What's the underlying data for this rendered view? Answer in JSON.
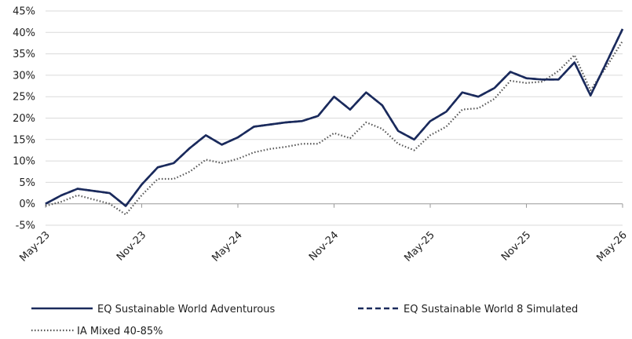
{
  "chart_data": {
    "type": "line",
    "x": [
      "May-23",
      "Jun-23",
      "Jul-23",
      "Aug-23",
      "Sep-23",
      "Oct-23",
      "Nov-23",
      "Dec-23",
      "Jan-24",
      "Feb-24",
      "Mar-24",
      "Apr-24",
      "May-24",
      "Jun-24",
      "Jul-24",
      "Aug-24",
      "Sep-24",
      "Oct-24",
      "Nov-24",
      "Dec-24",
      "Jan-25",
      "Feb-25",
      "Mar-25",
      "Apr-25",
      "May-25",
      "Jun-25",
      "Jul-25",
      "Aug-25",
      "Sep-25",
      "Oct-25",
      "Nov-25",
      "Dec-25",
      "Jan-26",
      "Feb-26",
      "Mar-26",
      "Apr-26",
      "May-26"
    ],
    "xticks": [
      "May-23",
      "Nov-23",
      "May-24",
      "Nov-24",
      "May-25",
      "Nov-25",
      "May-26"
    ],
    "ylim": [
      -5,
      45
    ],
    "yticks": [
      "-5%",
      "0%",
      "5%",
      "10%",
      "15%",
      "20%",
      "25%",
      "30%",
      "35%",
      "40%",
      "45%"
    ],
    "grid": "horizontal",
    "legend_position": "bottom",
    "series": [
      {
        "name": "EQ Sustainable World Adventurous",
        "style": "solid",
        "color": "#1a2a5c",
        "values": [
          0.0,
          2.0,
          3.5,
          3.0,
          2.5,
          -0.5,
          4.5,
          8.5,
          9.5,
          13.0,
          16.0,
          13.8,
          15.5,
          18.0,
          18.5,
          19.0,
          19.3,
          20.5,
          25.0,
          22.0,
          26.0,
          23.0,
          17.0,
          15.0,
          19.3,
          21.5,
          26.0,
          25.0,
          27.0,
          30.8,
          29.3,
          29.0,
          29.0,
          33.0,
          25.3,
          33.0,
          40.8
        ]
      },
      {
        "name": "EQ Sustainable World 8 Simulated",
        "style": "dashed",
        "color": "#1a2a5c",
        "values": [
          0.0,
          2.0,
          3.5,
          3.0,
          2.5,
          -0.5,
          4.5,
          8.5,
          9.5,
          13.0,
          16.0,
          13.8,
          15.5,
          18.0,
          18.5,
          19.0,
          19.3,
          20.5,
          25.0,
          22.0,
          26.0,
          23.0,
          17.0,
          15.0,
          19.3,
          21.5,
          26.0,
          25.0,
          27.0,
          30.8,
          29.3,
          29.0,
          29.0,
          33.0,
          25.3,
          33.0,
          40.8
        ]
      },
      {
        "name": "IA Mixed 40-85%",
        "style": "dotted",
        "color": "#555555",
        "values": [
          -0.5,
          0.5,
          2.0,
          1.0,
          0.0,
          -2.5,
          2.0,
          5.8,
          5.8,
          7.5,
          10.3,
          9.5,
          10.5,
          12.0,
          12.8,
          13.3,
          14.0,
          14.0,
          16.5,
          15.3,
          19.0,
          17.5,
          14.0,
          12.5,
          16.0,
          18.0,
          22.0,
          22.3,
          24.5,
          28.7,
          28.2,
          28.5,
          31.0,
          34.7,
          26.5,
          32.0,
          38.0
        ]
      }
    ]
  }
}
